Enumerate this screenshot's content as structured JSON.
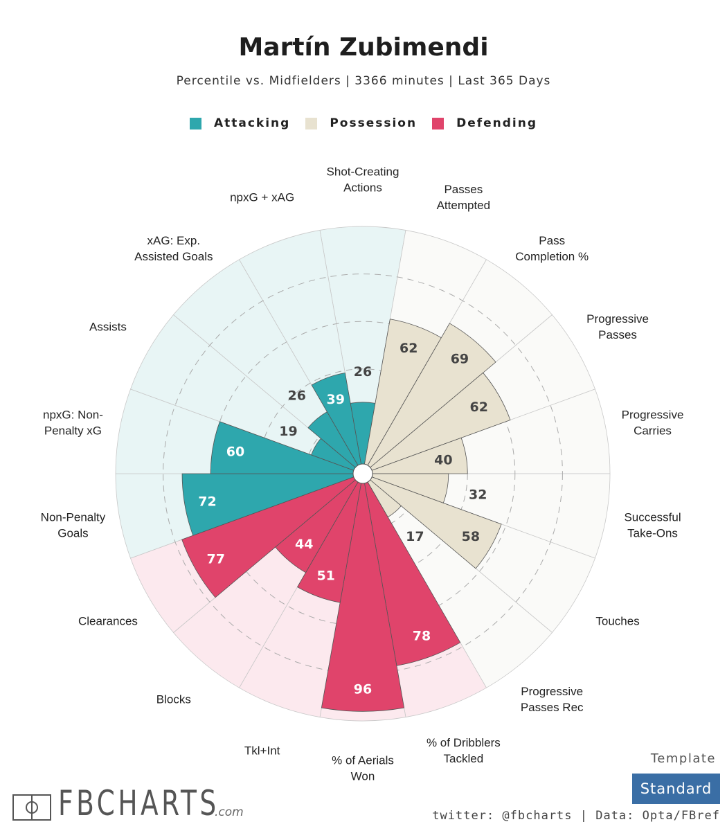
{
  "title": "Martín Zubimendi",
  "subtitle": "Percentile vs. Midfielders | 3366 minutes | Last 365 Days",
  "legend": [
    {
      "label": "Attacking",
      "color": "#2ea7ad"
    },
    {
      "label": "Possession",
      "color": "#e8e2d0"
    },
    {
      "label": "Defending",
      "color": "#e0446b"
    }
  ],
  "footer": {
    "template_label": "Template",
    "template_value": "Standard",
    "credit": "twitter: @fbcharts | Data: Opta/FBref",
    "logo": "FBCHARTS",
    "logo_suffix": ".com"
  },
  "chart_data": {
    "type": "pie",
    "subtype": "polar-bar (pizza)",
    "title": "Martín Zubimendi",
    "range": [
      0,
      100
    ],
    "gridlines": [
      20,
      40,
      60,
      80
    ],
    "categories": [
      {
        "label": [
          "Shot-Creating",
          "Actions"
        ],
        "value": 26,
        "group": "Attacking"
      },
      {
        "label": [
          "Passes",
          "Attempted"
        ],
        "value": 62,
        "group": "Possession"
      },
      {
        "label": [
          "Pass",
          "Completion %"
        ],
        "value": 69,
        "group": "Possession"
      },
      {
        "label": [
          "Progressive",
          "Passes"
        ],
        "value": 62,
        "group": "Possession"
      },
      {
        "label": [
          "Progressive",
          "Carries"
        ],
        "value": 40,
        "group": "Possession"
      },
      {
        "label": [
          "Successful",
          "Take-Ons"
        ],
        "value": 32,
        "group": "Possession"
      },
      {
        "label": [
          "Touches"
        ],
        "value": 58,
        "group": "Possession"
      },
      {
        "label": [
          "Progressive",
          "Passes Rec"
        ],
        "value": 17,
        "group": "Possession"
      },
      {
        "label": [
          "% of Dribblers",
          "Tackled"
        ],
        "value": 78,
        "group": "Defending"
      },
      {
        "label": [
          "% of Aerials",
          "Won"
        ],
        "value": 96,
        "group": "Defending"
      },
      {
        "label": [
          "Tkl+Int"
        ],
        "value": 51,
        "group": "Defending"
      },
      {
        "label": [
          "Blocks"
        ],
        "value": 44,
        "group": "Defending"
      },
      {
        "label": [
          "Clearances"
        ],
        "value": 77,
        "group": "Defending"
      },
      {
        "label": [
          "Non-Penalty",
          "Goals"
        ],
        "value": 72,
        "group": "Attacking"
      },
      {
        "label": [
          "npxG: Non-",
          "Penalty xG"
        ],
        "value": 60,
        "group": "Attacking"
      },
      {
        "label": [
          "Assists"
        ],
        "value": 19,
        "group": "Attacking"
      },
      {
        "label": [
          "xAG: Exp.",
          "Assisted Goals"
        ],
        "value": 26,
        "group": "Attacking"
      },
      {
        "label": [
          "npxG + xAG"
        ],
        "value": 39,
        "group": "Attacking"
      }
    ],
    "background_colors": {
      "Attacking": "#e8f5f5",
      "Possession": "#fafaf8",
      "Defending": "#fce9ee"
    },
    "value_text_colors": {
      "Attacking": "#ffffff",
      "Possession": "#444444",
      "Defending": "#ffffff"
    }
  }
}
